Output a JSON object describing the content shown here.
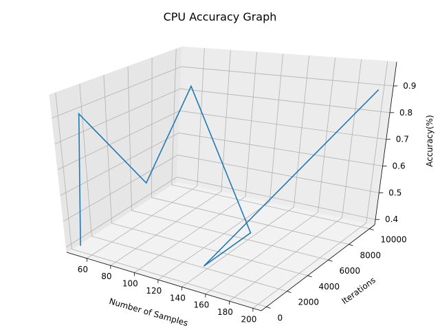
{
  "chart_data": {
    "type": "line",
    "projection": "3d",
    "title": "CPU Accuracy Graph",
    "xlabel": "Number of Samples",
    "ylabel": "Iterations",
    "zlabel": "Accuracy(%)",
    "xlim": [
      43,
      207
    ],
    "ylim": [
      -500,
      10500
    ],
    "zlim": [
      0.38,
      0.99
    ],
    "x_ticks": [
      60,
      80,
      100,
      120,
      140,
      160,
      180,
      200
    ],
    "y_ticks": [
      0,
      2000,
      4000,
      6000,
      8000,
      10000
    ],
    "z_ticks": [
      0.4,
      0.5,
      0.6,
      0.7,
      0.8,
      0.9
    ],
    "x_tick_labels": [
      "60",
      "80",
      "100",
      "120",
      "140",
      "160",
      "180",
      "200"
    ],
    "y_tick_labels": [
      "0",
      "2000",
      "4000",
      "6000",
      "8000",
      "10000"
    ],
    "z_tick_labels": [
      "0.4",
      "0.5",
      "0.6",
      "0.7",
      "0.8",
      "0.9"
    ],
    "grid": true,
    "series": [
      {
        "color": "#1f77b4",
        "x": [
          50,
          50,
          100,
          100,
          150,
          150,
          200
        ],
        "y": [
          100,
          1000,
          1000,
          5000,
          5000,
          500,
          10000
        ],
        "z": [
          0.4,
          0.9,
          0.7,
          0.99,
          0.45,
          0.45,
          0.9
        ]
      }
    ]
  }
}
